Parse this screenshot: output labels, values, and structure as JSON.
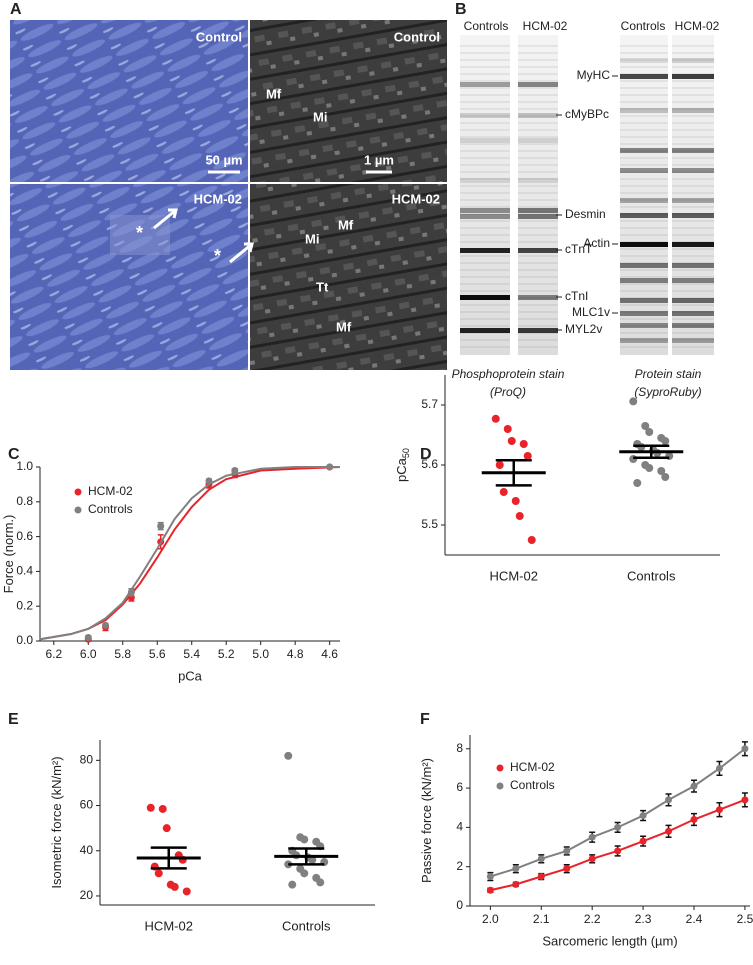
{
  "panel_a": {
    "label": "A",
    "lm_control": "Control",
    "em_control": "Control",
    "lm_scale": "50 µm",
    "em_scale": "1 µm",
    "em_control_marks": [
      "Mf",
      "Mi"
    ],
    "lm_hcm": "HCM-02",
    "em_hcm": "HCM-02",
    "lm_hcm_marks": [
      "*",
      "*"
    ],
    "em_hcm_marks": [
      "Mi",
      "Mf",
      "Tt",
      "Mf"
    ]
  },
  "panel_b": {
    "label": "B",
    "proq_lanes": [
      "Controls",
      "HCM-02"
    ],
    "ruby_lanes": [
      "Controls",
      "HCM-02"
    ],
    "proq_bands": [
      "cMyBPc",
      "Desmin",
      "cTnT",
      "cTnI",
      "MYL2v"
    ],
    "ruby_bands": [
      "MyHC",
      "Actin",
      "MLC1v"
    ],
    "proq_caption": [
      "Phosphoprotein stain",
      "(ProQ)"
    ],
    "ruby_caption": [
      "Protein stain",
      "(SyproRuby)"
    ]
  },
  "chart_data": [
    {
      "type": "line",
      "panel": "C",
      "x_label": "pCa",
      "y_label": "Force (norm.)",
      "legend": "upper left",
      "grid": false,
      "xlim": [
        6.28,
        4.54
      ],
      "ylim": [
        0,
        1
      ],
      "xticks": [
        6.2,
        {
          "value": 6.0,
          "label": "6.0"
        },
        5.8,
        5.6,
        5.4,
        5.2,
        {
          "value": 5.0,
          "label": "5.0"
        },
        4.8,
        4.6
      ],
      "yticks": [
        {
          "value": 0,
          "label": "0.0"
        },
        0.2,
        0.4,
        0.6,
        0.8,
        {
          "value": 1,
          "label": "1.0"
        }
      ],
      "x": [
        6.0,
        5.9,
        5.75,
        5.58,
        5.3,
        5.15,
        4.6
      ],
      "fit_x": [
        6.28,
        6.1,
        6.0,
        5.9,
        5.8,
        5.7,
        5.6,
        5.5,
        5.4,
        5.3,
        5.2,
        5.0,
        4.8,
        4.54
      ],
      "series": [
        {
          "name": "HCM-02",
          "color": "#e8232a",
          "values": [
            0.01,
            0.08,
            0.25,
            0.57,
            0.9,
            0.96,
            1.0
          ],
          "errors": [
            0.01,
            0.02,
            0.02,
            0.04,
            0.02,
            0.02,
            0.0
          ],
          "fit": [
            0.01,
            0.04,
            0.07,
            0.12,
            0.21,
            0.33,
            0.48,
            0.64,
            0.77,
            0.87,
            0.93,
            0.98,
            0.99,
            1.0
          ]
        },
        {
          "name": "Controls",
          "color": "#808080",
          "values": [
            0.02,
            0.09,
            0.28,
            0.66,
            0.92,
            0.98,
            1.0
          ],
          "errors": [
            0.01,
            0.01,
            0.02,
            0.02,
            0.01,
            0.01,
            0.0
          ],
          "fit": [
            0.01,
            0.04,
            0.07,
            0.13,
            0.22,
            0.37,
            0.53,
            0.7,
            0.82,
            0.9,
            0.95,
            0.99,
            1.0,
            1.0
          ]
        }
      ]
    },
    {
      "type": "dot",
      "panel": "D",
      "y_label": "pCa",
      "y_label_sub": "50",
      "ylim": [
        5.45,
        5.75
      ],
      "yticks": [
        5.5,
        5.6,
        5.7
      ],
      "grid": false,
      "categories": [
        "HCM-02",
        "Controls"
      ],
      "colors": [
        "#e8232a",
        "#808080"
      ],
      "points": [
        [
          5.677,
          5.66,
          5.64,
          5.635,
          5.615,
          5.6,
          5.555,
          5.54,
          5.515,
          5.475
        ],
        [
          5.706,
          5.665,
          5.655,
          5.645,
          5.64,
          5.635,
          5.63,
          5.625,
          5.62,
          5.615,
          5.61,
          5.6,
          5.595,
          5.59,
          5.58,
          5.57
        ]
      ],
      "means": [
        5.587,
        5.622
      ],
      "errors": [
        0.021,
        0.01
      ]
    },
    {
      "type": "dot",
      "panel": "E",
      "y_label": "Isometric force (kN/m²)",
      "ylim": [
        16,
        89
      ],
      "yticks": [
        20,
        40,
        60,
        80
      ],
      "grid": false,
      "categories": [
        "HCM-02",
        "Controls"
      ],
      "colors": [
        "#e8232a",
        "#808080"
      ],
      "points": [
        [
          59,
          58.5,
          50,
          38,
          36,
          33,
          30,
          25,
          24,
          22
        ],
        [
          82,
          46,
          45,
          44,
          42,
          40,
          38,
          37,
          36,
          35,
          34,
          32,
          30,
          28,
          26,
          25
        ]
      ],
      "means": [
        36.8,
        37.5
      ],
      "errors": [
        4.6,
        3.5
      ]
    },
    {
      "type": "line",
      "panel": "F",
      "x_label": "Sarcomeric length (µm)",
      "y_label": "Passive force (kN/m²)",
      "legend": "upper left",
      "grid": false,
      "xlim": [
        1.96,
        2.51
      ],
      "ylim": [
        0,
        8.7
      ],
      "xticks": [
        {
          "value": 2,
          "label": "2.0"
        },
        2.1,
        2.2,
        2.3,
        2.4,
        2.5
      ],
      "yticks": [
        0,
        2,
        4,
        6,
        8
      ],
      "x": [
        2.0,
        2.05,
        2.1,
        2.15,
        2.2,
        2.25,
        2.3,
        2.35,
        2.4,
        2.45,
        2.5
      ],
      "series": [
        {
          "name": "HCM-02",
          "color": "#e8232a",
          "values": [
            0.8,
            1.1,
            1.5,
            1.9,
            2.4,
            2.8,
            3.3,
            3.8,
            4.4,
            4.9,
            5.4
          ],
          "errors": [
            0.1,
            0.1,
            0.15,
            0.2,
            0.2,
            0.25,
            0.25,
            0.3,
            0.3,
            0.35,
            0.35
          ]
        },
        {
          "name": "Controls",
          "color": "#808080",
          "values": [
            1.5,
            1.9,
            2.4,
            2.8,
            3.5,
            4.0,
            4.6,
            5.4,
            6.1,
            7.0,
            8.0
          ],
          "errors": [
            0.2,
            0.2,
            0.2,
            0.2,
            0.25,
            0.25,
            0.25,
            0.3,
            0.3,
            0.35,
            0.35
          ]
        }
      ]
    }
  ]
}
